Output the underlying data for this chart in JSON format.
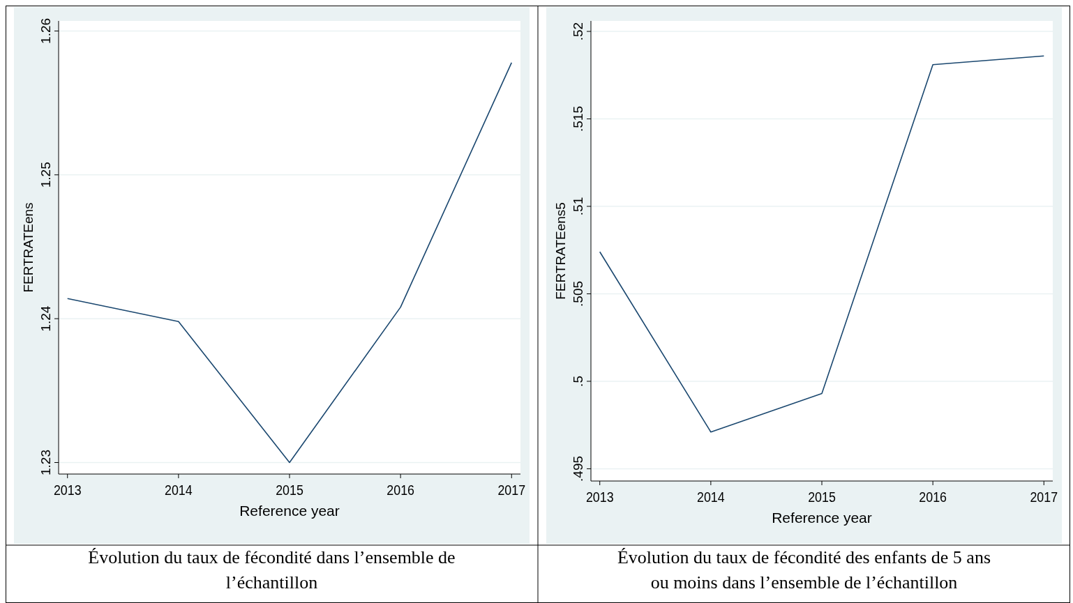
{
  "chart_data": [
    {
      "type": "line",
      "xlabel": "Reference year",
      "ylabel": "FERTRATEens",
      "x": [
        2013,
        2014,
        2015,
        2016,
        2017
      ],
      "xlim": [
        2012.92,
        2017.08
      ],
      "xticks": [
        2013,
        2014,
        2015,
        2016,
        2017
      ],
      "series": [
        {
          "color": "#1a476f",
          "values": [
            1.2414,
            1.2398,
            1.23,
            1.2408,
            1.2578
          ]
        }
      ],
      "ylim": [
        1.2292,
        1.2607
      ],
      "yticks": [
        1.23,
        1.24,
        1.25,
        1.26
      ],
      "grid": "y",
      "marker": "none",
      "line_style": "solid",
      "annotations": [
        "Évolution du taux de fécondité dans l’ensemble de l’échantillon"
      ]
    },
    {
      "type": "line",
      "xlabel": "Reference year",
      "ylabel": "FERTRATEens5",
      "x": [
        2013,
        2014,
        2015,
        2016,
        2017
      ],
      "xlim": [
        2012.92,
        2017.08
      ],
      "xticks": [
        2013,
        2014,
        2015,
        2016,
        2017
      ],
      "series": [
        {
          "color": "#1a476f",
          "values": [
            0.5074,
            0.4971,
            0.4993,
            0.5181,
            0.5186
          ]
        }
      ],
      "ylim": [
        0.4943,
        0.5206
      ],
      "yticks": [
        {
          "value": 0.495,
          "label": ".495"
        },
        {
          "value": 0.5,
          "label": ".5"
        },
        {
          "value": 0.505,
          "label": ".505"
        },
        {
          "value": 0.51,
          "label": ".51"
        },
        {
          "value": 0.515,
          "label": ".515"
        },
        {
          "value": 0.52,
          "label": ".52"
        }
      ],
      "grid": "y",
      "marker": "none",
      "line_style": "solid",
      "annotations": [
        "Évolution du taux de fécondité des enfants de 5 ans ou moins dans l’ensemble de l’échantillon"
      ]
    }
  ]
}
